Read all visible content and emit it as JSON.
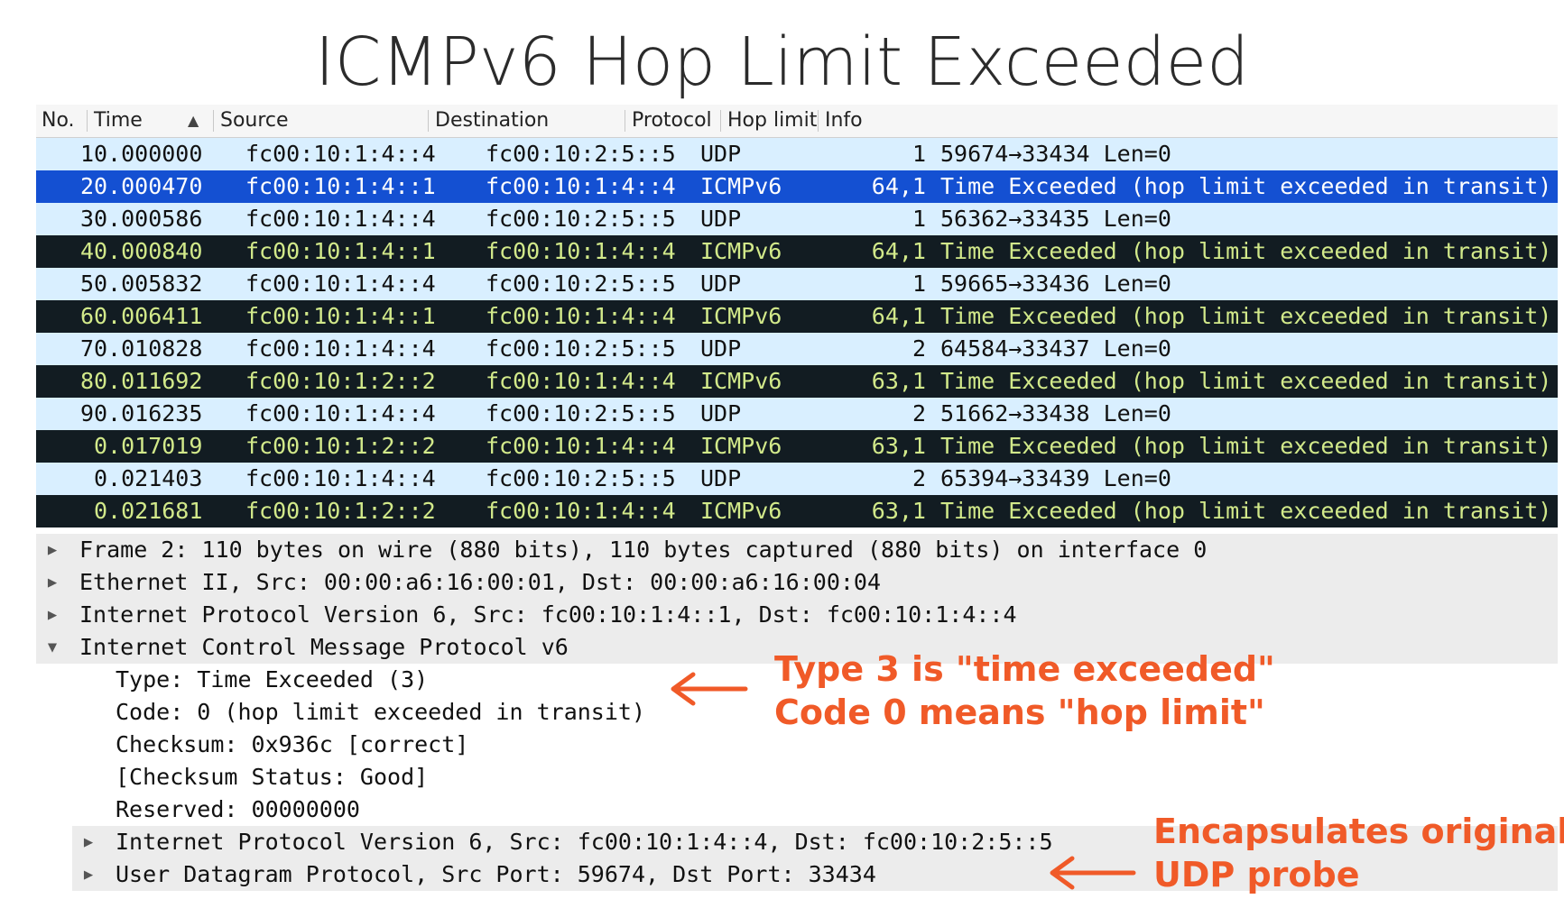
{
  "title": "ICMPv6 Hop Limit Exceeded",
  "packet_list": {
    "columns": {
      "no": "No.",
      "time": "Time",
      "source": "Source",
      "destination": "Destination",
      "protocol": "Protocol",
      "hop_limit": "Hop limit",
      "info": "Info"
    },
    "sort_indicator": "▲",
    "rows": [
      {
        "no": "1",
        "time": "0.000000",
        "source": "fc00:10:1:4::4",
        "destination": "fc00:10:2:5::5",
        "protocol": "UDP",
        "hop_limit": "1",
        "info": "59674→33434 Len=0"
      },
      {
        "no": "2",
        "time": "0.000470",
        "source": "fc00:10:1:4::1",
        "destination": "fc00:10:1:4::4",
        "protocol": "ICMPv6",
        "hop_limit": "64,1",
        "info": "Time Exceeded (hop limit exceeded in transit)"
      },
      {
        "no": "3",
        "time": "0.000586",
        "source": "fc00:10:1:4::4",
        "destination": "fc00:10:2:5::5",
        "protocol": "UDP",
        "hop_limit": "1",
        "info": "56362→33435 Len=0"
      },
      {
        "no": "4",
        "time": "0.000840",
        "source": "fc00:10:1:4::1",
        "destination": "fc00:10:1:4::4",
        "protocol": "ICMPv6",
        "hop_limit": "64,1",
        "info": "Time Exceeded (hop limit exceeded in transit)"
      },
      {
        "no": "5",
        "time": "0.005832",
        "source": "fc00:10:1:4::4",
        "destination": "fc00:10:2:5::5",
        "protocol": "UDP",
        "hop_limit": "1",
        "info": "59665→33436 Len=0"
      },
      {
        "no": "6",
        "time": "0.006411",
        "source": "fc00:10:1:4::1",
        "destination": "fc00:10:1:4::4",
        "protocol": "ICMPv6",
        "hop_limit": "64,1",
        "info": "Time Exceeded (hop limit exceeded in transit)"
      },
      {
        "no": "7",
        "time": "0.010828",
        "source": "fc00:10:1:4::4",
        "destination": "fc00:10:2:5::5",
        "protocol": "UDP",
        "hop_limit": "2",
        "info": "64584→33437 Len=0"
      },
      {
        "no": "8",
        "time": "0.011692",
        "source": "fc00:10:1:2::2",
        "destination": "fc00:10:1:4::4",
        "protocol": "ICMPv6",
        "hop_limit": "63,1",
        "info": "Time Exceeded (hop limit exceeded in transit)"
      },
      {
        "no": "9",
        "time": "0.016235",
        "source": "fc00:10:1:4::4",
        "destination": "fc00:10:2:5::5",
        "protocol": "UDP",
        "hop_limit": "2",
        "info": "51662→33438 Len=0"
      },
      {
        "no": "",
        "time": "0.017019",
        "source": "fc00:10:1:2::2",
        "destination": "fc00:10:1:4::4",
        "protocol": "ICMPv6",
        "hop_limit": "63,1",
        "info": "Time Exceeded (hop limit exceeded in transit)"
      },
      {
        "no": "",
        "time": "0.021403",
        "source": "fc00:10:1:4::4",
        "destination": "fc00:10:2:5::5",
        "protocol": "UDP",
        "hop_limit": "2",
        "info": "65394→33439 Len=0"
      },
      {
        "no": "",
        "time": "0.021681",
        "source": "fc00:10:1:2::2",
        "destination": "fc00:10:1:4::4",
        "protocol": "ICMPv6",
        "hop_limit": "63,1",
        "info": "Time Exceeded (hop limit exceeded in transit)"
      }
    ],
    "selected_row": "2"
  },
  "details": {
    "frame": "Frame 2: 110 bytes on wire (880 bits), 110 bytes captured (880 bits) on interface 0",
    "ethernet": "Ethernet II, Src: 00:00:a6:16:00:01, Dst: 00:00:a6:16:00:04",
    "ipv6": "Internet Protocol Version 6, Src: fc00:10:1:4::1, Dst: fc00:10:1:4::4",
    "icmpv6": "Internet Control Message Protocol v6",
    "icmp_fields": {
      "type": "Type: Time Exceeded (3)",
      "code": "Code: 0 (hop limit exceeded in transit)",
      "checksum": "Checksum: 0x936c [correct]",
      "checksum_status": "[Checksum Status: Good]",
      "reserved": "Reserved: 00000000"
    },
    "inner_ipv6": "Internet Protocol Version 6, Src: fc00:10:1:4::4, Dst: fc00:10:2:5::5",
    "inner_udp": "User Datagram Protocol, Src Port: 59674, Dst Port: 33434"
  },
  "annotations": {
    "type_line1": "Type 3 is \"time exceeded\"",
    "type_line2": "Code 0 means \"hop limit\"",
    "encap_line1": "Encapsulates original",
    "encap_line2": "UDP probe"
  },
  "colors": {
    "udp_row": "#d9efff",
    "icmp_row": "#121c22",
    "icmp_text": "#d2e98a",
    "selected_row": "#1450d2",
    "annotation": "#f05a28"
  },
  "icons": {
    "expand": "▶",
    "collapse": "▼"
  }
}
